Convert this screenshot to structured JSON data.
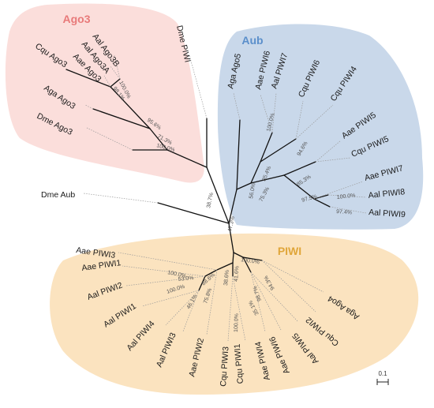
{
  "clades": {
    "ago3": {
      "label": "Ago3",
      "color": "#e87a7a",
      "fill": "#fbdedb"
    },
    "aub": {
      "label": "Aub",
      "color": "#5b8fcb",
      "fill": "#c9d8ea"
    },
    "piwi": {
      "label": "PIWI",
      "color": "#e0a63a",
      "fill": "#fbe3bf"
    }
  },
  "tips": {
    "dme_piwi": "Dme PIWI",
    "cqu_ago3": "Cqu Ago3",
    "aal_ago3b": "Aal Ago3B",
    "aal_ago3a": "Aal Ago3A",
    "aae_ago3": "Aae Ago3",
    "aga_ago3": "Aga Ago3",
    "dme_ago3": "Dme Ago3",
    "dme_aub": "Dme Aub",
    "aga_ago5": "Aga Ago5",
    "aae_piwi6": "Aae PIWI6",
    "aal_piwi7": "Aal PIWI7",
    "cqu_piwi6": "Cqu PIWI6",
    "cqu_piwi4": "Cqu PIWI4",
    "aae_piwi5": "Aae PIWI5",
    "cqu_piwi5": "Cqu PIWI5",
    "aae_piwi7": "Aae PIWI7",
    "aal_piwi8": "Aal PIWI8",
    "aal_piwi9": "Aal PIWI9",
    "aae_piwi3": "Aae PIWI3",
    "aae_piwi1": "Aae PIWI1",
    "aal_piwi2": "Aal PIWI2",
    "aal_piwi1": "Aal PIWI1",
    "aal_piwi4": "Aal PIWI4",
    "aal_piwi3": "Aal PIWI3",
    "aae_piwi2": "Aae PIWI2",
    "cqu_piwi3": "Cqu PIWI3",
    "cqu_piwi1": "Cqu PIWI1",
    "aae_piwi4": "Aae PIWI4",
    "aae_piwi6b": "Aae PIWI6",
    "aal_piwi5": "Aal PIWI5",
    "cqu_piwi2": "Cqu PIWI2",
    "aga_ago4": "Aga Ago4"
  },
  "bootstrap": {
    "b1": "100.0%",
    "b2": "98.1%",
    "b3": "95.6%",
    "b4": "71.3%",
    "b5": "100.0%",
    "b6": "38.7%",
    "b7": "47.3%",
    "b8": "56.0%",
    "b9": "100.0%",
    "b10": "85.4%",
    "b11": "94.6%",
    "b12": "75.3%",
    "b13": "85.3%",
    "b14": "97.5%",
    "b15": "100.0%",
    "b16": "97.4%",
    "b17": "100.0%",
    "b18": "100.0%",
    "b19": "53.0%",
    "b20": "100.0%",
    "b21": "88.6%",
    "b22": "46.1%",
    "b23": "75.8%",
    "b24": "38.6%",
    "b25": "41.6%",
    "b26": "100.0%",
    "b27": "94.3%",
    "b28": "98.7%",
    "b29": "35.1%"
  },
  "scale": {
    "label": "0.1"
  }
}
